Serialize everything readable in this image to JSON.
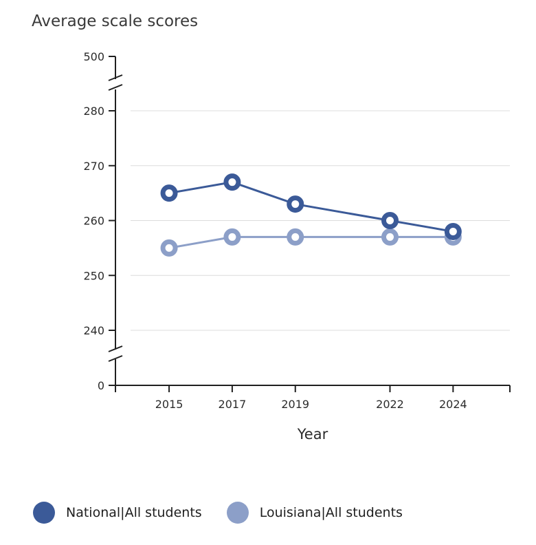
{
  "chart_data": {
    "type": "line",
    "title": "Average scale scores",
    "xlabel": "Year",
    "ylabel": "",
    "x": [
      "2015",
      "2017",
      "2019",
      "2022",
      "2024"
    ],
    "x_numeric": [
      2015,
      2017,
      2019,
      2022,
      2024
    ],
    "x_range": [
      2013.3,
      2025.8
    ],
    "y_ticks": [
      "500",
      "280",
      "270",
      "260",
      "250",
      "240",
      "0"
    ],
    "ylim_visible": [
      240,
      280
    ],
    "axis_breaks": "Y axis broken between 0 and 240 and between 280 and 500",
    "grid": true,
    "legend_position": "bottom",
    "series": [
      {
        "name": "National|All students",
        "values": [
          265,
          267,
          263,
          260,
          258
        ],
        "color": "#3b5a98"
      },
      {
        "name": "Louisiana|All students",
        "values": [
          255,
          257,
          257,
          257,
          257
        ],
        "color": "#8c9fc8"
      }
    ]
  }
}
